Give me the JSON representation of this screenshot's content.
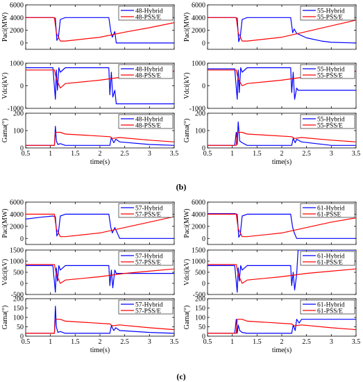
{
  "panel_labels": [
    "(b)",
    "(c)"
  ],
  "colors": {
    "hybrid": "#0000ff",
    "psse": "#ff0000",
    "axis": "#000000"
  },
  "x_label": "time(s)",
  "x_ticks": [
    "0.5",
    "1",
    "1.5",
    "2",
    "2.5",
    "3",
    "3.5"
  ],
  "chart_data": [
    {
      "type": "line",
      "group": "(b)",
      "ylabel": "Paci(MW)",
      "xlabel": "",
      "xlim": [
        0.5,
        3.5
      ],
      "ylim": [
        -1000,
        6000
      ],
      "yticks": [
        "0",
        "2000",
        "4000",
        "6000"
      ],
      "yticks_values": [
        0,
        2000,
        4000,
        6000
      ],
      "xticks_show": false,
      "series": [
        {
          "name": "48-Hybrid",
          "color": "#0000ff",
          "x": [
            0.5,
            1.05,
            1.1,
            1.13,
            1.16,
            1.2,
            1.3,
            2.18,
            2.22,
            2.25,
            2.3,
            2.33,
            2.4,
            3.5
          ],
          "y": [
            4000,
            4000,
            3900,
            400,
            800,
            3700,
            4000,
            4000,
            1800,
            900,
            1800,
            0,
            0,
            0
          ]
        },
        {
          "name": "48-PSS/E",
          "color": "#ff0000",
          "x": [
            0.5,
            1.08,
            1.12,
            1.2,
            1.3,
            2.0,
            2.5,
            3.0,
            3.5
          ],
          "y": [
            4000,
            4000,
            1600,
            300,
            300,
            900,
            1700,
            2400,
            3200
          ]
        }
      ]
    },
    {
      "type": "line",
      "group": "(b)",
      "ylabel": "Vdci(kV)",
      "xlabel": "",
      "xlim": [
        0.5,
        3.5
      ],
      "ylim": [
        -1000,
        1000
      ],
      "yticks": [
        "-1000",
        "0",
        "1000"
      ],
      "yticks_values": [
        -1000,
        0,
        1000
      ],
      "xticks_show": false,
      "series": [
        {
          "name": "48-Hybrid",
          "color": "#0000ff",
          "x": [
            0.5,
            1.05,
            1.1,
            1.12,
            1.14,
            1.17,
            1.2,
            1.3,
            2.18,
            2.2,
            2.23,
            2.26,
            2.3,
            2.33,
            3.5
          ],
          "y": [
            800,
            800,
            -600,
            700,
            -200,
            800,
            600,
            800,
            800,
            -400,
            600,
            -500,
            -200,
            -800,
            -800
          ]
        },
        {
          "name": "48-PSS/E",
          "color": "#ff0000",
          "x": [
            0.5,
            1.08,
            1.12,
            1.2,
            1.3,
            2.0,
            2.5,
            3.0,
            3.5
          ],
          "y": [
            700,
            700,
            300,
            -100,
            100,
            250,
            400,
            550,
            650
          ]
        }
      ]
    },
    {
      "type": "line",
      "group": "(b)",
      "ylabel": "Gama(°)",
      "xlabel": "time(s)",
      "xlim": [
        0.5,
        3.5
      ],
      "ylim": [
        0,
        200
      ],
      "yticks": [
        "0",
        "100",
        "200"
      ],
      "yticks_values": [
        0,
        100,
        200
      ],
      "xticks_show": true,
      "series": [
        {
          "name": "48-Hybrid",
          "color": "#0000ff",
          "x": [
            0.5,
            1.08,
            1.1,
            1.12,
            1.15,
            1.2,
            1.3,
            2.2,
            2.23,
            2.28,
            2.32,
            2.4,
            3.0,
            3.5
          ],
          "y": [
            15,
            15,
            125,
            40,
            20,
            25,
            15,
            15,
            60,
            30,
            50,
            35,
            20,
            15
          ]
        },
        {
          "name": "48-PSS/E",
          "color": "#ff0000",
          "x": [
            0.5,
            1.08,
            1.1,
            1.2,
            1.3,
            2.2,
            2.25,
            2.4,
            3.0,
            3.5
          ],
          "y": [
            15,
            15,
            90,
            90,
            80,
            65,
            55,
            60,
            45,
            35
          ]
        }
      ]
    },
    {
      "type": "line",
      "group": "(b)",
      "ylabel": "Paci(MW)",
      "xlabel": "",
      "xlim": [
        0.5,
        3.5
      ],
      "ylim": [
        -1000,
        6000
      ],
      "yticks": [
        "0",
        "2000",
        "4000",
        "6000"
      ],
      "yticks_values": [
        0,
        2000,
        4000,
        6000
      ],
      "xticks_show": false,
      "series": [
        {
          "name": "55-Hybrid",
          "color": "#0000ff",
          "x": [
            0.5,
            1.05,
            1.1,
            1.13,
            1.16,
            1.2,
            1.3,
            2.18,
            2.22,
            2.25,
            2.3,
            2.5,
            2.8,
            3.0,
            3.5
          ],
          "y": [
            4000,
            4000,
            3900,
            200,
            900,
            3700,
            4000,
            4000,
            1600,
            2200,
            1500,
            800,
            300,
            100,
            0
          ]
        },
        {
          "name": "55-PSS/E",
          "color": "#ff0000",
          "x": [
            0.5,
            1.08,
            1.12,
            1.2,
            1.3,
            2.0,
            2.5,
            3.0,
            3.5
          ],
          "y": [
            4000,
            4000,
            1600,
            300,
            300,
            900,
            1800,
            2700,
            3600
          ]
        }
      ]
    },
    {
      "type": "line",
      "group": "(b)",
      "ylabel": "Vdci(kV)",
      "xlabel": "",
      "xlim": [
        0.5,
        3.5
      ],
      "ylim": [
        -1000,
        1000
      ],
      "yticks": [
        "-1000",
        "0",
        "1000"
      ],
      "yticks_values": [
        -1000,
        0,
        1000
      ],
      "xticks_show": false,
      "series": [
        {
          "name": "55-Hybrid",
          "color": "#0000ff",
          "x": [
            0.5,
            1.05,
            1.1,
            1.12,
            1.14,
            1.17,
            1.2,
            1.3,
            2.18,
            2.2,
            2.23,
            2.26,
            2.3,
            2.33,
            3.5
          ],
          "y": [
            750,
            750,
            -600,
            700,
            -300,
            800,
            600,
            800,
            800,
            -300,
            600,
            -600,
            -100,
            -200,
            -200
          ]
        },
        {
          "name": "55-PSS/E",
          "color": "#ff0000",
          "x": [
            0.5,
            1.08,
            1.12,
            1.2,
            1.3,
            2.0,
            2.5,
            3.0,
            3.5
          ],
          "y": [
            700,
            700,
            300,
            0,
            100,
            250,
            400,
            550,
            650
          ]
        }
      ]
    },
    {
      "type": "line",
      "group": "(b)",
      "ylabel": "Gama(°)",
      "xlabel": "time(s)",
      "xlim": [
        0.5,
        3.5
      ],
      "ylim": [
        0,
        200
      ],
      "yticks": [
        "0",
        "100",
        "200"
      ],
      "yticks_values": [
        0,
        100,
        200
      ],
      "xticks_show": true,
      "series": [
        {
          "name": "55-Hybrid",
          "color": "#0000ff",
          "x": [
            0.5,
            1.05,
            1.08,
            1.1,
            1.12,
            1.15,
            1.2,
            1.3,
            2.2,
            2.23,
            2.27,
            2.3,
            2.4,
            3.0,
            3.5
          ],
          "y": [
            15,
            15,
            90,
            20,
            150,
            40,
            30,
            15,
            15,
            55,
            30,
            50,
            35,
            15,
            15
          ]
        },
        {
          "name": "55-PSS/E",
          "color": "#ff0000",
          "x": [
            0.5,
            1.08,
            1.1,
            1.2,
            1.3,
            2.2,
            2.25,
            2.4,
            3.0,
            3.5
          ],
          "y": [
            15,
            15,
            90,
            90,
            80,
            65,
            55,
            60,
            45,
            35
          ]
        }
      ]
    },
    {
      "type": "line",
      "group": "(c)",
      "ylabel": "Paci(MW)",
      "xlabel": "",
      "xlim": [
        0.5,
        3.5
      ],
      "ylim": [
        -1000,
        6000
      ],
      "yticks": [
        "0",
        "2000",
        "4000",
        "6000"
      ],
      "yticks_values": [
        0,
        2000,
        4000,
        6000
      ],
      "xticks_show": false,
      "series": [
        {
          "name": "57-Hybrid",
          "color": "#0000ff",
          "x": [
            0.5,
            0.8,
            1.05,
            1.1,
            1.13,
            1.16,
            1.2,
            1.3,
            2.18,
            2.22,
            2.25,
            2.3,
            2.4,
            3.5
          ],
          "y": [
            3200,
            3500,
            3700,
            3600,
            400,
            900,
            3700,
            4000,
            4000,
            1800,
            900,
            1800,
            0,
            0
          ]
        },
        {
          "name": "57-PSS/E",
          "color": "#ff0000",
          "x": [
            0.5,
            1.08,
            1.12,
            1.2,
            1.3,
            2.0,
            2.5,
            3.0,
            3.5
          ],
          "y": [
            4000,
            4000,
            1600,
            300,
            300,
            900,
            1800,
            2700,
            3600
          ]
        }
      ]
    },
    {
      "type": "line",
      "group": "(c)",
      "ylabel": "Vdci(kV)",
      "xlabel": "",
      "xlim": [
        0.5,
        3.5
      ],
      "ylim": [
        -500,
        1500
      ],
      "yticks": [
        "-500",
        "0",
        "500",
        "1000",
        "1500"
      ],
      "yticks_values": [
        -500,
        0,
        500,
        1000,
        1500
      ],
      "xticks_show": false,
      "series": [
        {
          "name": "57-Hybrid",
          "color": "#0000ff",
          "x": [
            0.5,
            1.05,
            1.1,
            1.12,
            1.14,
            1.17,
            1.2,
            1.3,
            2.18,
            2.2,
            2.23,
            2.26,
            2.3,
            2.33,
            3.5
          ],
          "y": [
            800,
            800,
            -400,
            700,
            100,
            800,
            600,
            800,
            800,
            -100,
            600,
            -200,
            600,
            450,
            450
          ]
        },
        {
          "name": "57-PSS/E",
          "color": "#ff0000",
          "x": [
            0.5,
            1.08,
            1.12,
            1.2,
            1.3,
            2.0,
            2.5,
            3.0,
            3.5
          ],
          "y": [
            850,
            850,
            400,
            0,
            150,
            300,
            450,
            550,
            650
          ]
        }
      ]
    },
    {
      "type": "line",
      "group": "(c)",
      "ylabel": "Gama(°)",
      "xlabel": "time(s)",
      "xlim": [
        0.5,
        3.5
      ],
      "ylim": [
        0,
        200
      ],
      "yticks": [
        "0",
        "50",
        "100",
        "150",
        "200"
      ],
      "yticks_values": [
        0,
        50,
        100,
        150,
        200
      ],
      "xticks_show": true,
      "series": [
        {
          "name": "57-Hybrid",
          "color": "#0000ff",
          "x": [
            0.5,
            1.08,
            1.1,
            1.12,
            1.15,
            1.2,
            1.3,
            2.2,
            2.23,
            2.28,
            2.32,
            2.4,
            3.0,
            3.5
          ],
          "y": [
            15,
            15,
            160,
            50,
            20,
            25,
            15,
            15,
            55,
            30,
            45,
            30,
            20,
            15
          ]
        },
        {
          "name": "57-PSS/E",
          "color": "#ff0000",
          "x": [
            0.5,
            1.08,
            1.1,
            1.2,
            1.3,
            2.2,
            2.25,
            2.4,
            3.0,
            3.5
          ],
          "y": [
            15,
            15,
            90,
            90,
            80,
            65,
            55,
            60,
            45,
            35
          ]
        }
      ]
    },
    {
      "type": "line",
      "group": "(c)",
      "ylabel": "Paci(MW)",
      "xlabel": "",
      "xlim": [
        0.5,
        3.5
      ],
      "ylim": [
        -1000,
        6000
      ],
      "yticks": [
        "0",
        "2000",
        "4000",
        "6000"
      ],
      "yticks_values": [
        0,
        2000,
        4000,
        6000
      ],
      "xticks_show": false,
      "series": [
        {
          "name": "61-Hybrid",
          "color": "#0000ff",
          "x": [
            0.5,
            1.05,
            1.1,
            1.13,
            1.16,
            1.2,
            1.3,
            2.18,
            2.22,
            2.25,
            2.3,
            2.4,
            3.5
          ],
          "y": [
            4100,
            4100,
            4000,
            200,
            600,
            3700,
            4000,
            4000,
            1800,
            1000,
            0,
            0,
            0
          ]
        },
        {
          "name": "61-PSSE",
          "color": "#ff0000",
          "x": [
            0.5,
            1.08,
            1.12,
            1.2,
            1.3,
            2.0,
            2.5,
            3.0,
            3.5
          ],
          "y": [
            4000,
            4000,
            1600,
            300,
            300,
            900,
            1800,
            2700,
            3400
          ]
        }
      ]
    },
    {
      "type": "line",
      "group": "(c)",
      "ylabel": "Vdci(kV)",
      "xlabel": "",
      "xlim": [
        0.5,
        3.5
      ],
      "ylim": [
        -500,
        1500
      ],
      "yticks": [
        "-500",
        "0",
        "500",
        "1000",
        "1500"
      ],
      "yticks_values": [
        -500,
        0,
        500,
        1000,
        1500
      ],
      "xticks_show": false,
      "series": [
        {
          "name": "61-Hybrid",
          "color": "#0000ff",
          "x": [
            0.5,
            1.05,
            1.1,
            1.12,
            1.14,
            1.17,
            1.2,
            1.3,
            2.18,
            2.2,
            2.23,
            2.26,
            2.3,
            2.33,
            3.5
          ],
          "y": [
            800,
            800,
            -400,
            700,
            100,
            800,
            600,
            800,
            800,
            -100,
            500,
            -300,
            400,
            1500,
            1500
          ]
        },
        {
          "name": "61-PSS/E",
          "color": "#ff0000",
          "x": [
            0.5,
            1.08,
            1.12,
            1.2,
            1.3,
            2.0,
            2.5,
            3.0,
            3.5
          ],
          "y": [
            850,
            850,
            400,
            0,
            150,
            300,
            450,
            550,
            650
          ]
        }
      ]
    },
    {
      "type": "line",
      "group": "(c)",
      "ylabel": "Gama(°)",
      "xlabel": "time(s)",
      "xlim": [
        0.5,
        3.5
      ],
      "ylim": [
        0,
        200
      ],
      "yticks": [
        "0",
        "50",
        "100",
        "150",
        "200"
      ],
      "yticks_values": [
        0,
        50,
        100,
        150,
        200
      ],
      "xticks_show": true,
      "series": [
        {
          "name": "61-Hybrid",
          "color": "#0000ff",
          "x": [
            0.5,
            1.05,
            1.08,
            1.1,
            1.12,
            1.15,
            1.2,
            1.3,
            2.2,
            2.23,
            2.27,
            2.3,
            2.35,
            2.4,
            3.5
          ],
          "y": [
            15,
            15,
            90,
            15,
            60,
            30,
            20,
            15,
            15,
            60,
            30,
            90,
            70,
            90,
            90
          ]
        },
        {
          "name": "61-PSS/E",
          "color": "#ff0000",
          "x": [
            0.5,
            1.08,
            1.1,
            1.2,
            1.3,
            2.2,
            2.25,
            2.4,
            3.0,
            3.5
          ],
          "y": [
            15,
            15,
            90,
            90,
            80,
            65,
            55,
            60,
            45,
            35
          ]
        }
      ]
    }
  ]
}
